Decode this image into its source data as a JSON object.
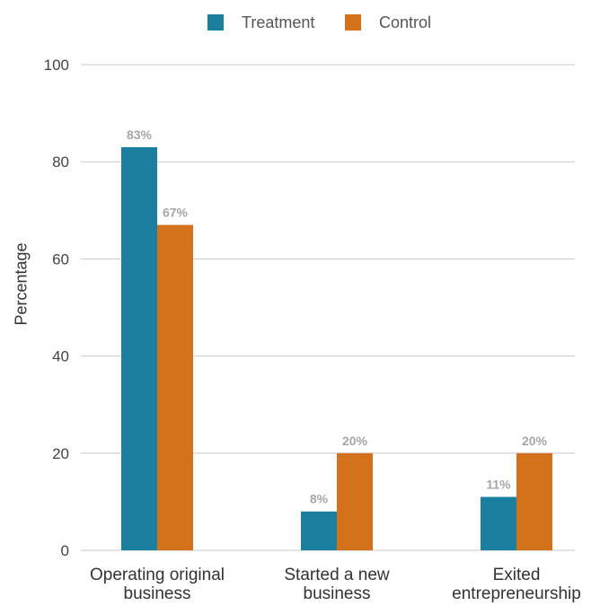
{
  "chart_data": {
    "type": "bar",
    "categories": [
      [
        "Operating original",
        "business"
      ],
      [
        "Started a new",
        "business"
      ],
      [
        "Exited",
        "entrepreneurship"
      ]
    ],
    "series": [
      {
        "name": "Treatment",
        "values": [
          83,
          8,
          11
        ],
        "labels": [
          "83%",
          "8%",
          "11%"
        ],
        "color": "#1b7f9f"
      },
      {
        "name": "Control",
        "values": [
          67,
          20,
          20
        ],
        "labels": [
          "67%",
          "20%",
          "20%"
        ],
        "color": "#d4711b"
      }
    ],
    "ylabel": "Percentage",
    "xlabel": "",
    "ylim": [
      0,
      100
    ],
    "yticks": [
      "0",
      "20",
      "40",
      "60",
      "80",
      "100"
    ],
    "grid": true,
    "legend_position": "top-center"
  }
}
